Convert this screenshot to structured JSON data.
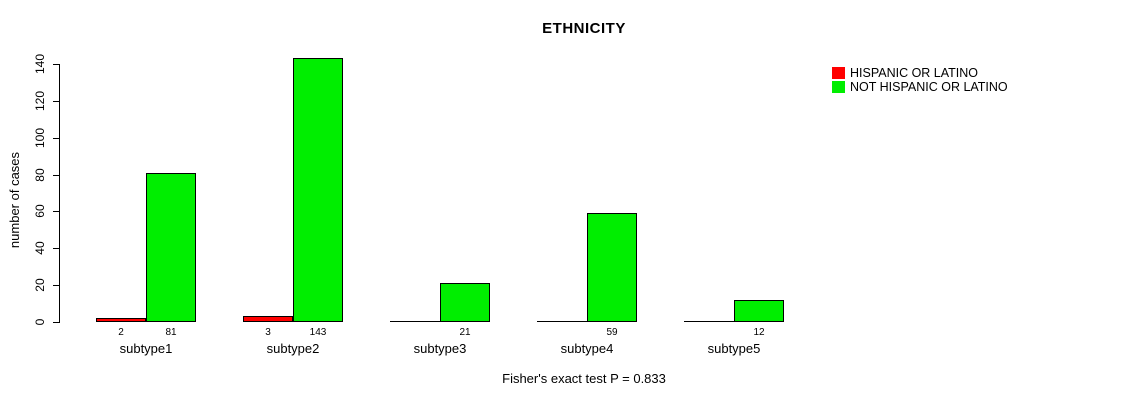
{
  "chart_data": {
    "type": "bar",
    "title": "ETHNICITY",
    "xlabel": "",
    "ylabel": "number of cases",
    "ylim": [
      0,
      140
    ],
    "yticks": [
      0,
      20,
      40,
      60,
      80,
      100,
      120,
      140
    ],
    "grid": false,
    "legend_position": "top-right",
    "categories": [
      "subtype1",
      "subtype2",
      "subtype3",
      "subtype4",
      "subtype5"
    ],
    "series": [
      {
        "name": "HISPANIC OR LATINO",
        "color": "#ff0000",
        "values": [
          2,
          3,
          0,
          0,
          0
        ],
        "value_labels": [
          "2",
          "3",
          "",
          "",
          ""
        ]
      },
      {
        "name": "NOT HISPANIC OR LATINO",
        "color": "#00ee00",
        "values": [
          81,
          143,
          21,
          59,
          12
        ],
        "value_labels": [
          "81",
          "143",
          "21",
          "59",
          "12"
        ]
      }
    ],
    "annotation": "Fisher's exact test P = 0.833"
  }
}
